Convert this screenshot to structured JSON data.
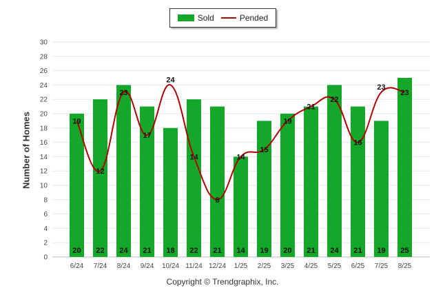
{
  "legend": {
    "sold": "Sold",
    "pended": "Pended"
  },
  "footer": "Copyright © Trendgraphix, Inc.",
  "colors": {
    "sold": "#13a82a",
    "pended": "#b00000",
    "grid": "#e6e6e6"
  },
  "chart_data": {
    "type": "bar",
    "ylabel": "Number of Homes",
    "ylim": [
      0,
      30
    ],
    "yticks": [
      0,
      2,
      4,
      6,
      8,
      10,
      12,
      14,
      16,
      18,
      20,
      22,
      24,
      26,
      28,
      30
    ],
    "categories": [
      "6/24",
      "7/24",
      "8/24",
      "9/24",
      "10/24",
      "11/24",
      "12/24",
      "1/25",
      "2/25",
      "3/25",
      "4/25",
      "5/25",
      "6/25",
      "7/25",
      "8/25"
    ],
    "grid": true,
    "legend_position": "top-center",
    "series": [
      {
        "name": "Sold",
        "type": "bar",
        "values": [
          20,
          22,
          24,
          21,
          18,
          22,
          21,
          14,
          19,
          20,
          21,
          24,
          21,
          19,
          25
        ]
      },
      {
        "name": "Pended",
        "type": "line",
        "values": [
          19,
          12,
          23,
          17,
          24,
          14,
          8,
          14,
          15,
          19,
          21,
          22,
          16,
          23,
          23
        ]
      }
    ]
  }
}
